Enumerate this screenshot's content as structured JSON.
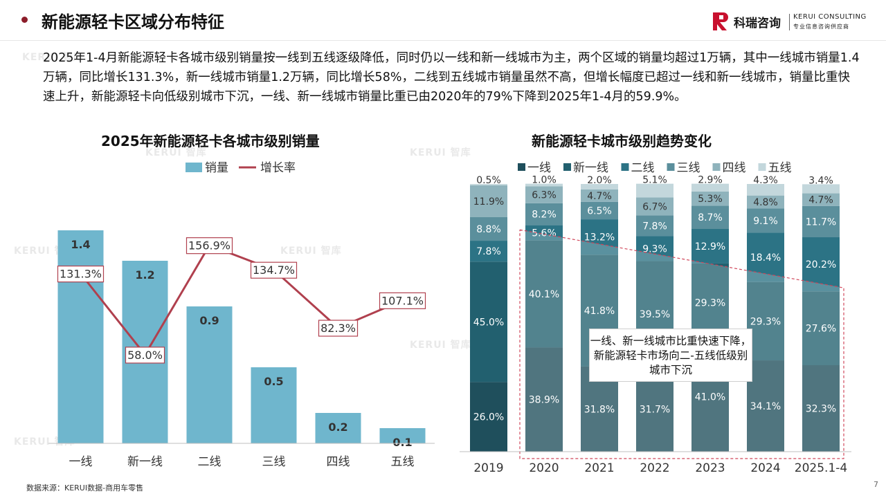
{
  "header": {
    "title": "新能源轻卡区域分布特征",
    "logo": {
      "cn": "科瑞咨询",
      "en": "KERUI CONSULTING",
      "tagline": "专业信息咨询供应商"
    }
  },
  "summary": "2025年1-4月新能源轻卡各城市级别销量按一线到五线逐级降低，同时仍以一线和新一线城市为主，两个区域的销量均超过1万辆，其中一线城市销量1.4万辆，同比增长131.3%，新一线城市销量1.2万辆，同比增长58%，二线到五线城市销量虽然不高，但增长幅度已超过一线和新一线城市，销量比重快速上升，新能源轻卡向低级别城市下沉，一线、新一线城市销量比重已由2020年的79%下降到2025年1-4月的59.9%。",
  "watermark": "KERUI 智库",
  "callout": "一线、新一线城市比重快速下降，新能源轻卡市场向二-五线低级别城市下沉",
  "source": "数据来源：KERUI数据-商用车零售",
  "page_number": "7",
  "chart_data": [
    {
      "type": "bar",
      "title": "2025年新能源轻卡各城市级别销量",
      "categories": [
        "一线",
        "新一线",
        "二线",
        "三线",
        "四线",
        "五线"
      ],
      "series": [
        {
          "name": "销量",
          "type": "bar",
          "values": [
            1.4,
            1.2,
            0.9,
            0.5,
            0.2,
            0.1
          ],
          "labels": [
            "1.4",
            "1.2",
            "0.9",
            "0.5",
            "0.2",
            "0.1"
          ],
          "color": "#6fb6cd"
        },
        {
          "name": "增长率",
          "type": "line",
          "values": [
            131.3,
            58.0,
            156.9,
            134.7,
            82.3,
            107.1
          ],
          "labels": [
            "131.3%",
            "58.0%",
            "156.9%",
            "134.7%",
            "82.3%",
            "107.1%"
          ],
          "color": "#b0404e"
        }
      ],
      "legend_position": "top-center",
      "grid": false
    },
    {
      "type": "bar",
      "stacked": true,
      "percent": true,
      "title": "新能源轻卡城市级别趋势变化",
      "categories": [
        "2019",
        "2020",
        "2021",
        "2022",
        "2023",
        "2024",
        "2025.1-4"
      ],
      "series": [
        {
          "name": "一线",
          "color": "#1f4f5c",
          "values": [
            26.0,
            38.9,
            31.8,
            31.7,
            41.0,
            34.1,
            32.3
          ],
          "labels": [
            "26.0%",
            "38.9%",
            "31.8%",
            "31.7%",
            "41.0%",
            "34.1%",
            "32.3%"
          ]
        },
        {
          "name": "新一线",
          "color": "#22606f",
          "values": [
            45.0,
            40.1,
            41.8,
            39.5,
            29.3,
            29.3,
            27.6
          ],
          "labels": [
            "45.0%",
            "40.1%",
            "41.8%",
            "39.5%",
            "29.3%",
            "29.3%",
            "27.6%"
          ]
        },
        {
          "name": "二线",
          "color": "#2c7385",
          "values": [
            7.8,
            5.6,
            13.2,
            9.3,
            12.9,
            18.4,
            20.2
          ],
          "labels": [
            "7.8%",
            "5.6%",
            "13.2%",
            "9.3%",
            "12.9%",
            "18.4%",
            "20.2%"
          ]
        },
        {
          "name": "三线",
          "color": "#5b8f9c",
          "values": [
            8.8,
            8.2,
            6.5,
            7.8,
            8.7,
            9.1,
            11.7
          ],
          "labels": [
            "8.8%",
            "8.2%",
            "6.5%",
            "7.8%",
            "8.7%",
            "9.1%",
            "11.7%"
          ]
        },
        {
          "name": "四线",
          "color": "#8fb3bc",
          "values": [
            11.9,
            6.3,
            4.7,
            6.7,
            5.3,
            4.8,
            4.7
          ],
          "labels": [
            "11.9%",
            "6.3%",
            "4.7%",
            "6.7%",
            "5.3%",
            "4.8%",
            "4.7%"
          ]
        },
        {
          "name": "五线",
          "color": "#c3d7dc",
          "values": [
            0.5,
            1.0,
            2.0,
            5.1,
            2.9,
            4.3,
            3.4
          ],
          "labels": [
            "0.5%",
            "1.0%",
            "2.0%",
            "5.1%",
            "2.9%",
            "4.3%",
            "3.4%"
          ]
        }
      ],
      "legend_position": "top-center",
      "grid": false,
      "ylim": [
        0,
        100
      ]
    }
  ]
}
